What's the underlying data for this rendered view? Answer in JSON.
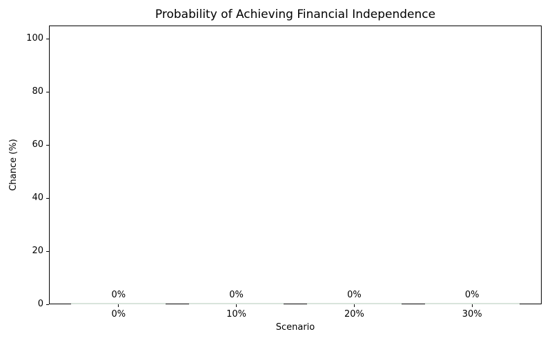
{
  "figure": {
    "title": "Probability of Achieving Financial Independence",
    "xlabel": "Scenario",
    "ylabel": "Chance (%)"
  },
  "chart_data": {
    "type": "bar",
    "title": "Probability of Achieving Financial Independence",
    "xlabel": "Scenario",
    "ylabel": "Chance (%)",
    "categories": [
      "0%",
      "10%",
      "20%",
      "30%"
    ],
    "values": [
      0,
      0,
      0,
      0
    ],
    "bar_value_labels": [
      "0%",
      "0%",
      "0%",
      "0%"
    ],
    "ylim": [
      0,
      105
    ],
    "yticks": [
      0,
      20,
      40,
      60,
      80,
      100
    ],
    "ytick_labels": [
      "0",
      "20",
      "40",
      "60",
      "80",
      "100"
    ],
    "grid": false,
    "legend": null,
    "colors": {
      "bar_fill": "#d9e4dc",
      "axis": "#000000",
      "text": "#000000",
      "background": "#ffffff"
    }
  }
}
